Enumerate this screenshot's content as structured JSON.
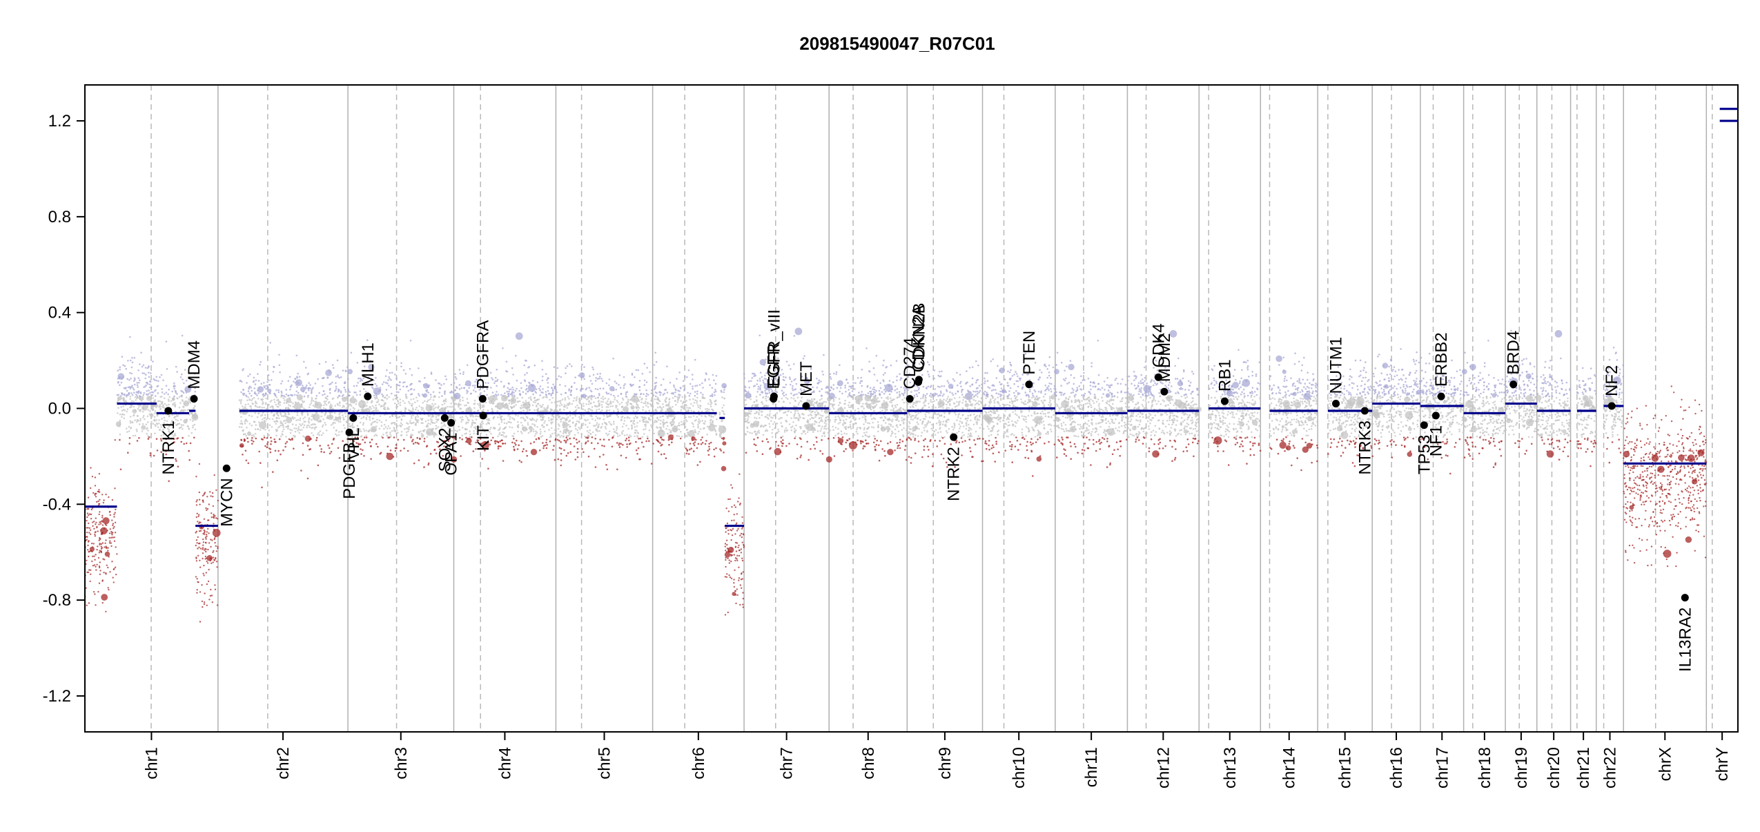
{
  "chart_data": {
    "type": "scatter",
    "title": "209815490047_R07C01",
    "xlabel": "",
    "ylabel": "",
    "ylim": [
      -1.35,
      1.35
    ],
    "yticks": [
      1.2,
      0.8,
      0.4,
      0.0,
      -0.4,
      -0.8,
      -1.2
    ],
    "ytick_labels": [
      "1.2",
      "0.8",
      "0.4",
      "0.0",
      "-0.4",
      "-0.8",
      "-1.2"
    ],
    "grid": false,
    "colors": {
      "segment": "#00008b",
      "gain_point": "#a9a9d6",
      "neutral_point": "#c4c4c4",
      "loss_point": "#a52a2a",
      "chrom_boundary": "#b0b0b0",
      "centromere": "#b8b8b8",
      "gene_marker": "#000000"
    },
    "chromosomes": [
      {
        "name": "chr1",
        "label": "chr1",
        "length": 249,
        "centromere": 124,
        "segments": [
          {
            "start": 0,
            "end": 60,
            "value": -0.41
          },
          {
            "start": 60,
            "end": 134,
            "value": 0.02
          },
          {
            "start": 134,
            "end": 195,
            "value": -0.02
          },
          {
            "start": 195,
            "end": 207,
            "value": -0.01
          },
          {
            "start": 207,
            "end": 249,
            "value": -0.49
          }
        ],
        "loss_regions": [
          {
            "start": 0,
            "end": 60,
            "mean": -0.55
          },
          {
            "start": 207,
            "end": 249,
            "mean": -0.55
          }
        ]
      },
      {
        "name": "chr2",
        "label": "chr2",
        "length": 243,
        "centromere": 93,
        "segments": [
          {
            "start": 40,
            "end": 243,
            "value": -0.01
          }
        ],
        "loss_regions": []
      },
      {
        "name": "chr3",
        "label": "chr3",
        "length": 198,
        "centromere": 91,
        "segments": [
          {
            "start": 0,
            "end": 198,
            "value": -0.02
          }
        ],
        "loss_regions": []
      },
      {
        "name": "chr4",
        "label": "chr4",
        "length": 191,
        "centromere": 50,
        "segments": [
          {
            "start": 0,
            "end": 191,
            "value": -0.02
          }
        ],
        "loss_regions": []
      },
      {
        "name": "chr5",
        "label": "chr5",
        "length": 181,
        "centromere": 48,
        "segments": [
          {
            "start": 0,
            "end": 181,
            "value": -0.02
          }
        ],
        "loss_regions": []
      },
      {
        "name": "chr6",
        "label": "chr6",
        "length": 171,
        "centromere": 60,
        "segments": [
          {
            "start": 0,
            "end": 120,
            "value": -0.02
          },
          {
            "start": 125,
            "end": 135,
            "value": -0.04
          },
          {
            "start": 135,
            "end": 171,
            "value": -0.49
          }
        ],
        "loss_regions": [
          {
            "start": 135,
            "end": 171,
            "mean": -0.6
          }
        ]
      },
      {
        "name": "chr7",
        "label": "chr7",
        "length": 159,
        "centromere": 59,
        "segments": [
          {
            "start": 0,
            "end": 159,
            "value": 0.0
          }
        ],
        "loss_regions": []
      },
      {
        "name": "chr8",
        "label": "chr8",
        "length": 146,
        "centromere": 45,
        "segments": [
          {
            "start": 0,
            "end": 146,
            "value": -0.02
          }
        ],
        "loss_regions": []
      },
      {
        "name": "chr9",
        "label": "chr9",
        "length": 141,
        "centromere": 49,
        "segments": [
          {
            "start": 0,
            "end": 141,
            "value": -0.01
          }
        ],
        "loss_regions": []
      },
      {
        "name": "chr10",
        "label": "chr10",
        "length": 136,
        "centromere": 40,
        "segments": [
          {
            "start": 0,
            "end": 136,
            "value": 0.0
          }
        ],
        "loss_regions": []
      },
      {
        "name": "chr11",
        "label": "chr11",
        "length": 135,
        "centromere": 53,
        "segments": [
          {
            "start": 0,
            "end": 135,
            "value": -0.02
          }
        ],
        "loss_regions": []
      },
      {
        "name": "chr12",
        "label": "chr12",
        "length": 134,
        "centromere": 35,
        "segments": [
          {
            "start": 0,
            "end": 134,
            "value": -0.01
          }
        ],
        "loss_regions": []
      },
      {
        "name": "chr13",
        "label": "chr13",
        "length": 115,
        "centromere": 18,
        "segments": [
          {
            "start": 18,
            "end": 115,
            "value": 0.0
          }
        ],
        "loss_regions": []
      },
      {
        "name": "chr14",
        "label": "chr14",
        "length": 107,
        "centromere": 17,
        "segments": [
          {
            "start": 17,
            "end": 107,
            "value": -0.01
          }
        ],
        "loss_regions": []
      },
      {
        "name": "chr15",
        "label": "chr15",
        "length": 102,
        "centromere": 19,
        "segments": [
          {
            "start": 19,
            "end": 102,
            "value": -0.01
          }
        ],
        "loss_regions": []
      },
      {
        "name": "chr16",
        "label": "chr16",
        "length": 90,
        "centromere": 36,
        "segments": [
          {
            "start": 0,
            "end": 90,
            "value": 0.02
          }
        ],
        "loss_regions": []
      },
      {
        "name": "chr17",
        "label": "chr17",
        "length": 81,
        "centromere": 24,
        "segments": [
          {
            "start": 0,
            "end": 81,
            "value": 0.01
          }
        ],
        "loss_regions": []
      },
      {
        "name": "chr18",
        "label": "chr18",
        "length": 78,
        "centromere": 17,
        "segments": [
          {
            "start": 0,
            "end": 78,
            "value": -0.02
          }
        ],
        "loss_regions": []
      },
      {
        "name": "chr19",
        "label": "chr19",
        "length": 59,
        "centromere": 26,
        "segments": [
          {
            "start": 0,
            "end": 59,
            "value": 0.02
          }
        ],
        "loss_regions": []
      },
      {
        "name": "chr20",
        "label": "chr20",
        "length": 63,
        "centromere": 28,
        "segments": [
          {
            "start": 0,
            "end": 63,
            "value": -0.01
          }
        ],
        "loss_regions": []
      },
      {
        "name": "chr21",
        "label": "chr21",
        "length": 48,
        "centromere": 12,
        "segments": [
          {
            "start": 12,
            "end": 48,
            "value": -0.01
          }
        ],
        "loss_regions": []
      },
      {
        "name": "chr22",
        "label": "chr22",
        "length": 51,
        "centromere": 14,
        "segments": [
          {
            "start": 14,
            "end": 51,
            "value": 0.01
          }
        ],
        "loss_regions": []
      },
      {
        "name": "chrX",
        "label": "chrX",
        "length": 155,
        "centromere": 60,
        "segments": [
          {
            "start": 0,
            "end": 155,
            "value": -0.23
          }
        ],
        "loss_regions": [
          {
            "start": 0,
            "end": 155,
            "mean": -0.3
          }
        ]
      },
      {
        "name": "chrY",
        "label": "chrY",
        "length": 59,
        "centromere": 11,
        "segments": [
          {
            "start": 25,
            "end": 59,
            "value": 1.2
          },
          {
            "start": 25,
            "end": 59,
            "value": 1.25
          }
        ],
        "loss_regions": []
      }
    ],
    "genes": [
      {
        "name": "NTRK1",
        "chrom": "chr1",
        "pos": 156,
        "value": -0.01,
        "side": "below"
      },
      {
        "name": "MDM4",
        "chrom": "chr1",
        "pos": 204,
        "value": 0.04,
        "side": "above"
      },
      {
        "name": "MYCN",
        "chrom": "chr2",
        "pos": 16,
        "value": -0.25,
        "side": "below"
      },
      {
        "name": "PDGFB",
        "chrom": "chr22",
        "pos": 39,
        "value": -0.1,
        "side": "below",
        "label_chrom": "chr3",
        "label_pos": 0
      },
      {
        "name": "VHL",
        "chrom": "chr3",
        "pos": 10,
        "value": -0.04,
        "side": "below"
      },
      {
        "name": "MLH1",
        "chrom": "chr3",
        "pos": 37,
        "value": 0.05,
        "side": "above"
      },
      {
        "name": "SOX2",
        "chrom": "chr3",
        "pos": 181,
        "value": -0.04,
        "side": "below"
      },
      {
        "name": "OPA1",
        "chrom": "chr3",
        "pos": 193,
        "value": -0.06,
        "side": "below"
      },
      {
        "name": "KIT",
        "chrom": "chr4",
        "pos": 55,
        "value": -0.03,
        "side": "below"
      },
      {
        "name": "PDGFRA",
        "chrom": "chr4",
        "pos": 54,
        "value": 0.04,
        "side": "above"
      },
      {
        "name": "EGFR",
        "chrom": "chr7",
        "pos": 55,
        "value": 0.04,
        "side": "above"
      },
      {
        "name": "EGFR_vIII",
        "chrom": "chr7",
        "pos": 56,
        "value": 0.05,
        "side": "above"
      },
      {
        "name": "MET",
        "chrom": "chr7",
        "pos": 116,
        "value": 0.01,
        "side": "above"
      },
      {
        "name": "CD274",
        "chrom": "chr9",
        "pos": 5,
        "value": 0.04,
        "side": "above"
      },
      {
        "name": "CDKN2A",
        "chrom": "chr9",
        "pos": 21,
        "value": 0.11,
        "side": "above"
      },
      {
        "name": "CDKN2B",
        "chrom": "chr9",
        "pos": 22,
        "value": 0.12,
        "side": "above"
      },
      {
        "name": "NTRK2",
        "chrom": "chr9",
        "pos": 87,
        "value": -0.12,
        "side": "below"
      },
      {
        "name": "PTEN",
        "chrom": "chr10",
        "pos": 87,
        "value": 0.1,
        "side": "above"
      },
      {
        "name": "CDK4",
        "chrom": "chr12",
        "pos": 58,
        "value": 0.13,
        "side": "above"
      },
      {
        "name": "MDM2",
        "chrom": "chr12",
        "pos": 69,
        "value": 0.07,
        "side": "above"
      },
      {
        "name": "RB1",
        "chrom": "chr13",
        "pos": 48,
        "value": 0.03,
        "side": "above"
      },
      {
        "name": "NUTM1",
        "chrom": "chr15",
        "pos": 34,
        "value": 0.02,
        "side": "above"
      },
      {
        "name": "NTRK3",
        "chrom": "chr15",
        "pos": 88,
        "value": -0.01,
        "side": "below"
      },
      {
        "name": "TP53",
        "chrom": "chr17",
        "pos": 7,
        "value": -0.07,
        "side": "below"
      },
      {
        "name": "NF1",
        "chrom": "chr17",
        "pos": 29,
        "value": -0.03,
        "side": "below"
      },
      {
        "name": "ERBB2",
        "chrom": "chr17",
        "pos": 39,
        "value": 0.05,
        "side": "above"
      },
      {
        "name": "BRD4",
        "chrom": "chr19",
        "pos": 15,
        "value": 0.1,
        "side": "above"
      },
      {
        "name": "NF2",
        "chrom": "chr22",
        "pos": 29,
        "value": 0.01,
        "side": "above"
      },
      {
        "name": "IL13RA2",
        "chrom": "chrX",
        "pos": 115,
        "value": -0.79,
        "side": "below"
      }
    ]
  }
}
